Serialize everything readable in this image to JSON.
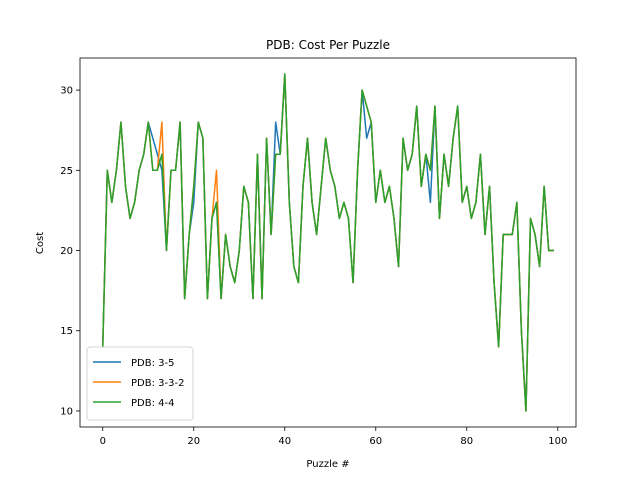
{
  "chart_data": {
    "type": "line",
    "title": "PDB: Cost Per Puzzle",
    "xlabel": "Puzzle #",
    "ylabel": "Cost",
    "xlim": [
      -5,
      104
    ],
    "ylim": [
      9,
      32
    ],
    "xticks": [
      0,
      20,
      40,
      60,
      80,
      100
    ],
    "yticks": [
      10,
      15,
      20,
      25,
      30
    ],
    "grid": false,
    "legend_position": "lower-left",
    "x": [
      0,
      1,
      2,
      3,
      4,
      5,
      6,
      7,
      8,
      9,
      10,
      11,
      12,
      13,
      14,
      15,
      16,
      17,
      18,
      19,
      20,
      21,
      22,
      23,
      24,
      25,
      26,
      27,
      28,
      29,
      30,
      31,
      32,
      33,
      34,
      35,
      36,
      37,
      38,
      39,
      40,
      41,
      42,
      43,
      44,
      45,
      46,
      47,
      48,
      49,
      50,
      51,
      52,
      53,
      54,
      55,
      56,
      57,
      58,
      59,
      60,
      61,
      62,
      63,
      64,
      65,
      66,
      67,
      68,
      69,
      70,
      71,
      72,
      73,
      74,
      75,
      76,
      77,
      78,
      79,
      80,
      81,
      82,
      83,
      84,
      85,
      86,
      87,
      88,
      89,
      90,
      91,
      92,
      93,
      94,
      95,
      96,
      97,
      98,
      99
    ],
    "series": [
      {
        "name": "PDB: 3-5",
        "color": "#1f77b4",
        "values": [
          14,
          25,
          23,
          25,
          28,
          24,
          22,
          23,
          25,
          26,
          28,
          27,
          26,
          25,
          20,
          25,
          25,
          28,
          17,
          21,
          23,
          28,
          27,
          17,
          22,
          23,
          17,
          21,
          19,
          18,
          20,
          24,
          23,
          17,
          26,
          17,
          27,
          21,
          28,
          26,
          31,
          23,
          19,
          18,
          24,
          27,
          23,
          21,
          24,
          27,
          25,
          24,
          22,
          23,
          22,
          18,
          25,
          30,
          27,
          28,
          23,
          25,
          23,
          24,
          22,
          19,
          27,
          25,
          26,
          29,
          24,
          26,
          23,
          29,
          22,
          26,
          24,
          27,
          29,
          23,
          24,
          22,
          23,
          26,
          21,
          24,
          18,
          14,
          21,
          21,
          21,
          23,
          15,
          10,
          22,
          21,
          19,
          24,
          20,
          20
        ]
      },
      {
        "name": "PDB: 3-3-2",
        "color": "#ff7f0e",
        "values": [
          14,
          25,
          23,
          25,
          28,
          24,
          22,
          23,
          25,
          26,
          28,
          25,
          25,
          28,
          20,
          25,
          25,
          28,
          17,
          21,
          24,
          28,
          27,
          17,
          22,
          25,
          17,
          21,
          19,
          18,
          20,
          24,
          23,
          17,
          26,
          17,
          27,
          21,
          26,
          26,
          31,
          23,
          19,
          18,
          24,
          27,
          23,
          21,
          24,
          27,
          25,
          24,
          22,
          23,
          22,
          18,
          25,
          30,
          29,
          28,
          23,
          25,
          23,
          24,
          22,
          19,
          27,
          25,
          26,
          29,
          24,
          26,
          25,
          29,
          22,
          26,
          24,
          27,
          29,
          23,
          24,
          22,
          23,
          26,
          21,
          24,
          18,
          14,
          21,
          21,
          21,
          23,
          15,
          10,
          22,
          21,
          19,
          24,
          20,
          20
        ]
      },
      {
        "name": "PDB: 4-4",
        "color": "#2ca02c",
        "values": [
          14,
          25,
          23,
          25,
          28,
          24,
          22,
          23,
          25,
          26,
          28,
          25,
          25,
          26,
          20,
          25,
          25,
          28,
          17,
          21,
          24,
          28,
          27,
          17,
          22,
          23,
          17,
          21,
          19,
          18,
          20,
          24,
          23,
          17,
          26,
          17,
          27,
          21,
          26,
          26,
          31,
          23,
          19,
          18,
          24,
          27,
          23,
          21,
          24,
          27,
          25,
          24,
          22,
          23,
          22,
          18,
          25,
          30,
          29,
          28,
          23,
          25,
          23,
          24,
          22,
          19,
          27,
          25,
          26,
          29,
          24,
          26,
          25,
          29,
          22,
          26,
          24,
          27,
          29,
          23,
          24,
          22,
          23,
          26,
          21,
          24,
          18,
          14,
          21,
          21,
          21,
          23,
          15,
          10,
          22,
          21,
          19,
          24,
          20,
          20
        ]
      }
    ]
  }
}
